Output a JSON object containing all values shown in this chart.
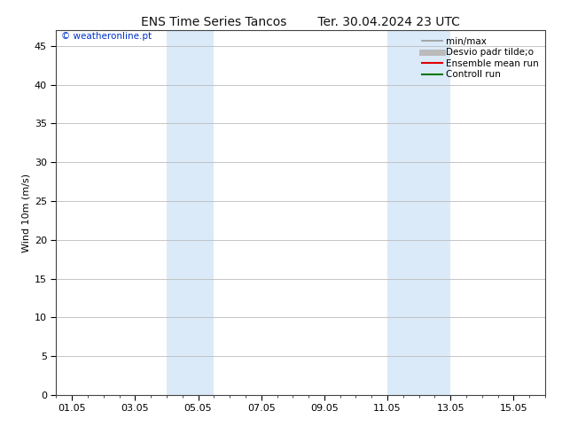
{
  "title": "ENS Time Series Tancos        Ter. 30.04.2024 23 UTC",
  "ylabel": "Wind 10m (m/s)",
  "watermark": "© weatheronline.pt",
  "watermark_color": "#0033cc",
  "ylim": [
    0,
    47
  ],
  "yticks": [
    0,
    5,
    10,
    15,
    20,
    25,
    30,
    35,
    40,
    45
  ],
  "xtick_positions": [
    1,
    3,
    5,
    7,
    9,
    11,
    13,
    15
  ],
  "xtick_labels": [
    "01.05",
    "03.05",
    "05.05",
    "07.05",
    "09.05",
    "11.05",
    "13.05",
    "15.05"
  ],
  "xlim": [
    0.5,
    16.0
  ],
  "background_color": "#ffffff",
  "plot_bg_color": "#ffffff",
  "grid_color": "#bbbbbb",
  "shaded_regions": [
    {
      "xstart": 4.0,
      "xend": 5.5,
      "color": "#daeaf8"
    },
    {
      "xstart": 11.0,
      "xend": 13.0,
      "color": "#daeaf8"
    }
  ],
  "legend_entries": [
    {
      "label": "min/max",
      "color": "#999999",
      "lw": 1.2,
      "style": "-"
    },
    {
      "label": "Desvio padr tilde;o",
      "color": "#bbbbbb",
      "lw": 5,
      "style": "-"
    },
    {
      "label": "Ensemble mean run",
      "color": "#dd0000",
      "lw": 1.5,
      "style": "-"
    },
    {
      "label": "Controll run",
      "color": "#007700",
      "lw": 1.5,
      "style": "-"
    }
  ],
  "title_fontsize": 10,
  "label_fontsize": 8,
  "tick_fontsize": 8,
  "legend_fontsize": 7.5,
  "watermark_fontsize": 7.5
}
